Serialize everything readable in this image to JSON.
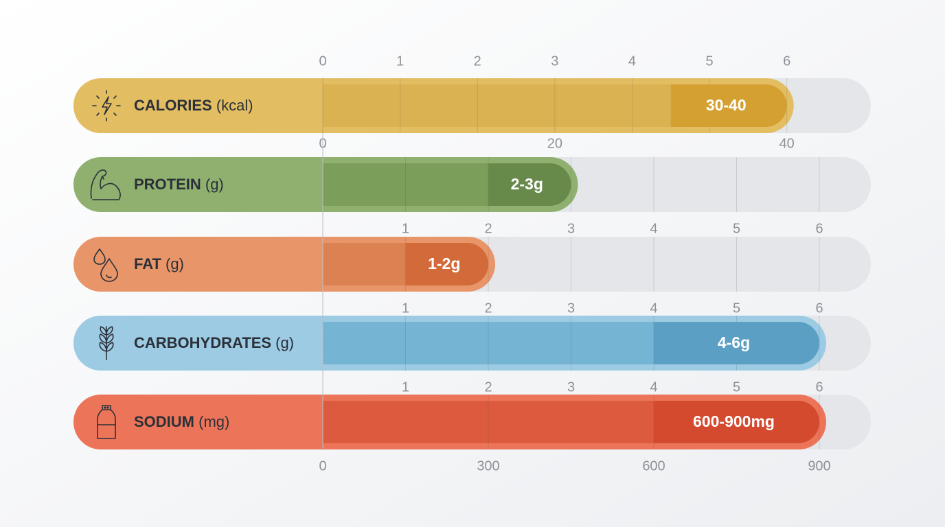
{
  "chart_data": [
    {
      "type": "range-bar",
      "title": "CALORIES",
      "unit": "(kcal)",
      "color": "#e3bd62",
      "fill_color": "#dbb252",
      "accent": "#d4a032",
      "xlim": [
        0,
        6.42
      ],
      "xticks": [
        0,
        1,
        2,
        3,
        4,
        5,
        6
      ],
      "tick_side": "top",
      "x2lim": [
        0,
        42.8
      ],
      "x2ticks": [
        0,
        20,
        40
      ],
      "range_axis": "x2",
      "range": [
        30,
        40
      ],
      "range_label": "30-40"
    },
    {
      "type": "range-bar",
      "title": "PROTEIN",
      "unit": "(g)",
      "color": "#90b070",
      "fill_color": "#7b9e5b",
      "accent": "#67894a",
      "xlim": [
        0,
        6
      ],
      "xticks": [
        1,
        2,
        3,
        4,
        5,
        6
      ],
      "tick_side": "bottom",
      "range": [
        2,
        3
      ],
      "range_label": "2-3g"
    },
    {
      "type": "range-bar",
      "title": "FAT",
      "unit": "(g)",
      "color": "#e8956a",
      "fill_color": "#dc8152",
      "accent": "#d26a3a",
      "xlim": [
        0,
        6
      ],
      "xticks": [
        1,
        2,
        3,
        4,
        5,
        6
      ],
      "tick_side": "bottom",
      "range": [
        1,
        2
      ],
      "range_label": "1-2g"
    },
    {
      "type": "range-bar",
      "title": "CARBOHYDRATES",
      "unit": "(g)",
      "color": "#9ccbe3",
      "fill_color": "#76b4d3",
      "accent": "#5b9fc4",
      "xlim": [
        0,
        6
      ],
      "xticks": [
        1,
        2,
        3,
        4,
        5,
        6
      ],
      "tick_side": "bottom",
      "range": [
        4,
        6
      ],
      "range_label": "4-6g"
    },
    {
      "type": "range-bar",
      "title": "SODIUM",
      "unit": "(mg)",
      "color": "#ec7559",
      "fill_color": "#dc5a3d",
      "accent": "#d34a2f",
      "xlim": [
        0,
        900
      ],
      "xticks": [
        0,
        300,
        600,
        900
      ],
      "tick_side": "bottom",
      "range": [
        600,
        900
      ],
      "range_label": "600-900mg"
    }
  ]
}
